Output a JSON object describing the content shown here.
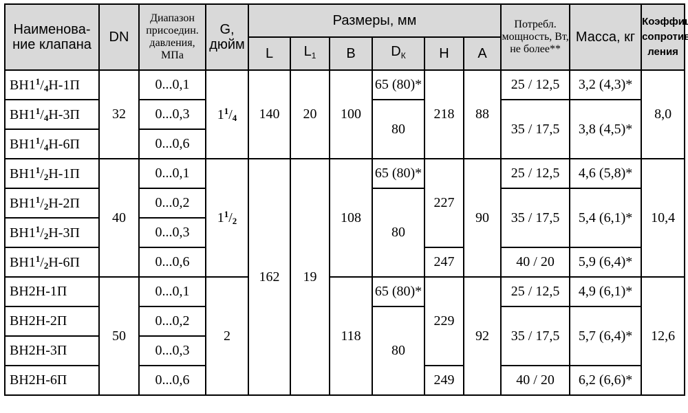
{
  "header": {
    "name": "Наименова-ние клапана",
    "dn": "DN",
    "range": "Диапазон присоедин. давления, МПа",
    "g": "G, дюйм",
    "sizes": "Размеры, мм",
    "L": "L",
    "L1_base": "L",
    "L1_sub": "1",
    "B": "B",
    "DK_base": "D",
    "DK_sub": "К",
    "H": "H",
    "A": "A",
    "power": "Потребл. мощность, Вт, не более**",
    "mass": "Масса, кг",
    "coef": "Коэффиц. сопротив-ления"
  },
  "groups": [
    {
      "dn": "32",
      "g_whole": "1",
      "g_num": "1",
      "g_den": "4",
      "L": "140",
      "L1": "20",
      "B": "100",
      "H": "218",
      "A": "88",
      "coef": "8,0",
      "rows": [
        {
          "name_prefix": "ВН1",
          "name_num": "1",
          "name_den": "4",
          "name_suffix": "Н-1П",
          "range": "0...0,1",
          "dk": "65 (80)*",
          "power": "25 / 12,5",
          "mass": "3,2 (4,3)*"
        },
        {
          "name_prefix": "ВН1",
          "name_num": "1",
          "name_den": "4",
          "name_suffix": "Н-3П",
          "range": "0...0,3",
          "dk": "80",
          "power": "35 / 17,5",
          "mass": "3,8 (4,5)*"
        },
        {
          "name_prefix": "ВН1",
          "name_num": "1",
          "name_den": "4",
          "name_suffix": "Н-6П",
          "range": "0...0,6"
        }
      ]
    },
    {
      "dn": "40",
      "g_whole": "1",
      "g_num": "1",
      "g_den": "2",
      "B": "108",
      "H_a": "227",
      "H_b": "247",
      "A": "90",
      "coef": "10,4",
      "rows": [
        {
          "name_prefix": "ВН1",
          "name_num": "1",
          "name_den": "2",
          "name_suffix": "Н-1П",
          "range": "0...0,1",
          "dk": "65 (80)*",
          "power": "25 / 12,5",
          "mass": "4,6 (5,8)*"
        },
        {
          "name_prefix": "ВН1",
          "name_num": "1",
          "name_den": "2",
          "name_suffix": "Н-2П",
          "range": "0...0,2",
          "dk": "80",
          "power": "35 / 17,5",
          "mass": "5,4 (6,1)*"
        },
        {
          "name_prefix": "ВН1",
          "name_num": "1",
          "name_den": "2",
          "name_suffix": "Н-3П",
          "range": "0...0,3"
        },
        {
          "name_prefix": "ВН1",
          "name_num": "1",
          "name_den": "2",
          "name_suffix": "Н-6П",
          "range": "0...0,6",
          "power": "40 / 20",
          "mass": "5,9 (6,4)*"
        }
      ]
    },
    {
      "shared_L": "162",
      "shared_L1": "19",
      "dn": "50",
      "g": "2",
      "B": "118",
      "H_a": "229",
      "H_b": "249",
      "A": "92",
      "coef": "12,6",
      "rows": [
        {
          "name": "ВН2Н-1П",
          "range": "0...0,1",
          "dk": "65 (80)*",
          "power": "25 / 12,5",
          "mass": "4,9 (6,1)*"
        },
        {
          "name": "ВН2Н-2П",
          "range": "0...0,2",
          "dk": "80",
          "power": "35 / 17,5",
          "mass": "5,7 (6,4)*"
        },
        {
          "name": "ВН2Н-3П",
          "range": "0...0,3"
        },
        {
          "name": "ВН2Н-6П",
          "range": "0...0,6",
          "power": "40 / 20",
          "mass": "6,2 (6,6)*"
        }
      ]
    }
  ]
}
